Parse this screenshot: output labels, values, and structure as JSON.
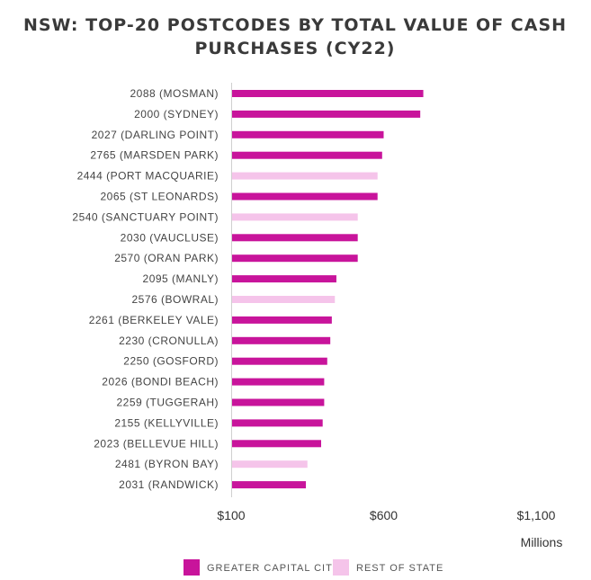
{
  "chart_data": {
    "type": "bar",
    "orientation": "horizontal",
    "title_lines": [
      "NSW: TOP-20 POSTCODES BY TOTAL VALUE OF CASH",
      "PURCHASES (CY22)"
    ],
    "categories": [
      "2088 (MOSMAN)",
      "2000 (SYDNEY)",
      "2027 (DARLING POINT)",
      "2765 (MARSDEN PARK)",
      "2444 (PORT MACQUARIE)",
      "2065 (ST LEONARDS)",
      "2540 (SANCTUARY POINT)",
      "2030 (VAUCLUSE)",
      "2570 (ORAN PARK)",
      "2095 (MANLY)",
      "2576 (BOWRAL)",
      "2261 (BERKELEY VALE)",
      "2230 (CRONULLA)",
      "2250 (GOSFORD)",
      "2026 (BONDI BEACH)",
      "2259 (TUGGERAH)",
      "2155 (KELLYVILLE)",
      "2023 (BELLEVUE HILL)",
      "2481 (BYRON BAY)",
      "2031 (RANDWICK)"
    ],
    "values": [
      730,
      720,
      600,
      595,
      580,
      580,
      515,
      515,
      515,
      445,
      440,
      430,
      425,
      415,
      405,
      405,
      400,
      395,
      350,
      345
    ],
    "groups": [
      "capital",
      "capital",
      "capital",
      "capital",
      "regional",
      "capital",
      "regional",
      "capital",
      "capital",
      "capital",
      "regional",
      "capital",
      "capital",
      "capital",
      "capital",
      "capital",
      "capital",
      "capital",
      "regional",
      "capital"
    ],
    "xlim": [
      100,
      1100
    ],
    "x_ticks": [
      100,
      600,
      1100
    ],
    "x_tick_labels": [
      "$100",
      "$600",
      "$1,100"
    ],
    "unit_label": "Millions",
    "legend": [
      {
        "key": "capital",
        "label": "GREATER CAPITAL CITY",
        "color": "#c8149b"
      },
      {
        "key": "regional",
        "label": "REST OF STATE",
        "color": "#f5c4ea"
      }
    ],
    "grid": false,
    "legend_position": "bottom"
  }
}
